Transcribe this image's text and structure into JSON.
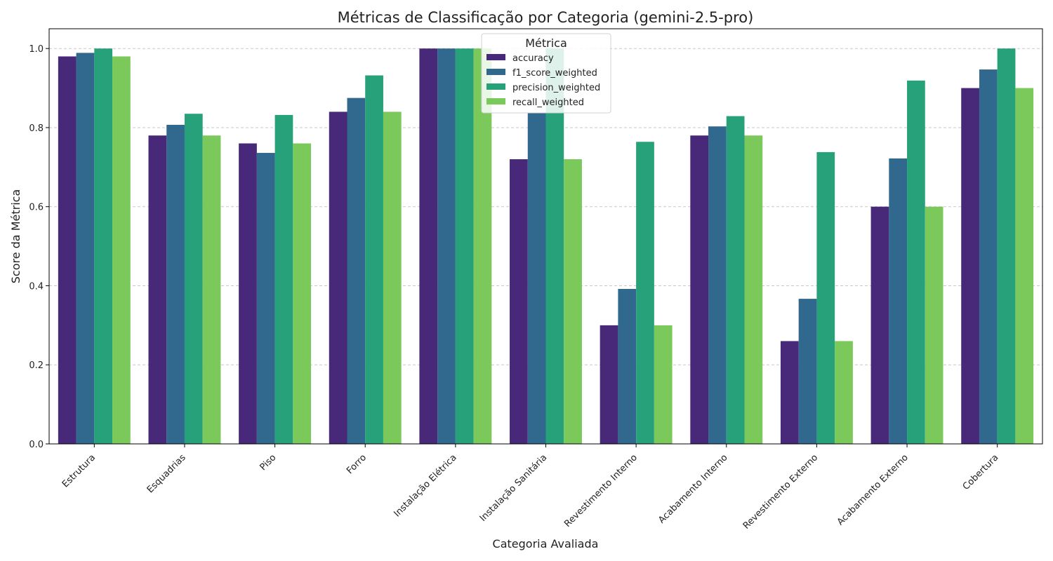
{
  "chart_data": {
    "type": "bar",
    "title": "Métricas de Classificação por Categoria (gemini-2.5-pro)",
    "xlabel": "Categoria Avaliada",
    "ylabel": "Score da Métrica",
    "ylim": [
      0,
      1.05
    ],
    "yticks": [
      "0.0",
      "0.2",
      "0.4",
      "0.6",
      "0.8",
      "1.0"
    ],
    "grid": "y-dashed",
    "legend": {
      "title": "Métrica",
      "placement": "top-center"
    },
    "categories": [
      "Estrutura",
      "Esquadrias",
      "Piso",
      "Forro",
      "Instalação Elétrica",
      "Instalação Sanitária",
      "Revestimento Interno",
      "Acabamento Interno",
      "Revestimento Externo",
      "Acabamento Externo",
      "Cobertura"
    ],
    "series": [
      {
        "name": "accuracy",
        "color": "#482878",
        "values": [
          0.98,
          0.78,
          0.76,
          0.84,
          1.0,
          0.72,
          0.3,
          0.78,
          0.26,
          0.6,
          0.9
        ]
      },
      {
        "name": "f1_score_weighted",
        "color": "#31688e",
        "values": [
          0.989,
          0.807,
          0.736,
          0.875,
          1.0,
          0.837,
          0.392,
          0.803,
          0.367,
          0.722,
          0.947
        ]
      },
      {
        "name": "precision_weighted",
        "color": "#26a17a",
        "values": [
          1.0,
          0.835,
          0.832,
          0.932,
          1.0,
          1.0,
          0.764,
          0.829,
          0.738,
          0.919,
          1.0
        ]
      },
      {
        "name": "recall_weighted",
        "color": "#7bc95a",
        "values": [
          0.98,
          0.78,
          0.76,
          0.84,
          1.0,
          0.72,
          0.3,
          0.78,
          0.26,
          0.6,
          0.9
        ]
      }
    ]
  }
}
